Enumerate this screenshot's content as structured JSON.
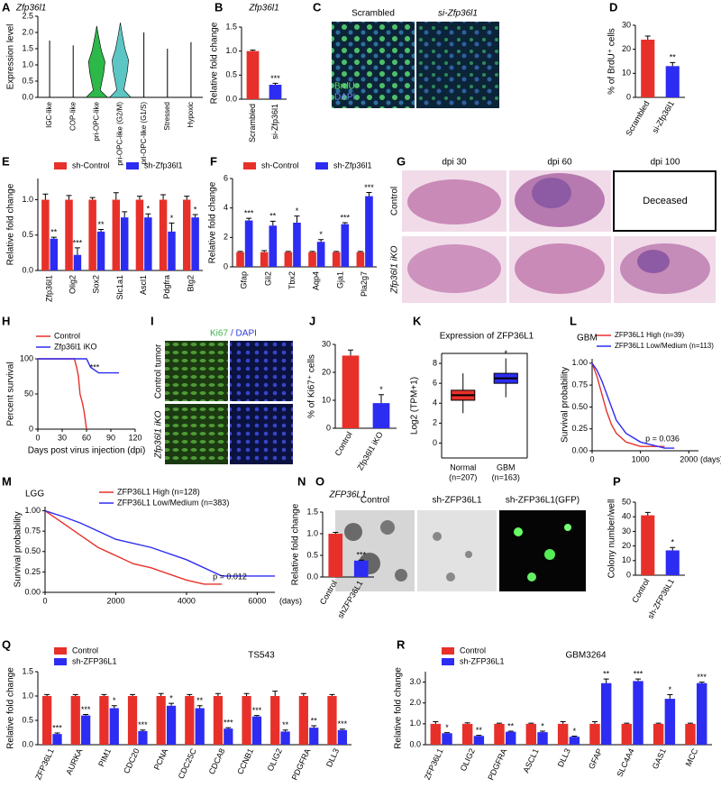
{
  "chart_data": [
    {
      "type": "violin",
      "panel": "A",
      "title": "Zfp36l1",
      "ylabel": "Expression level",
      "categories": [
        "IGC-like",
        "COP-like",
        "pri-OPC-like",
        "pri-OPC-like (G2/M)",
        "pri-OPC-like (G1/S)",
        "Stressed",
        "Hypoxic"
      ],
      "values": [
        1.75,
        1.6,
        2.2,
        2.3,
        2.0,
        1.5,
        1.7
      ],
      "colors": [
        "#000000",
        "#000000",
        "#2db84a",
        "#5cc6c4",
        "#000000",
        "#000000",
        "#000000"
      ],
      "ylim": [
        0,
        2.5
      ],
      "yticks": [
        {
          "value": 0,
          "label": "0.0"
        },
        0.5,
        {
          "value": 1,
          "label": "1.0"
        },
        1.5,
        {
          "value": 2,
          "label": "2.0"
        },
        2.5
      ]
    },
    {
      "type": "bar",
      "panel": "B",
      "title": "Zfp36l1",
      "ylabel": "Relative fold change",
      "categories": [
        "Scrambled",
        "si-Zfp36l1"
      ],
      "values": [
        1.0,
        0.3
      ],
      "errors": [
        0.02,
        0.03
      ],
      "colors": [
        "#e8302a",
        "#2d2cf2"
      ],
      "significance": [
        null,
        "***"
      ],
      "ylim": [
        0,
        1.5
      ],
      "yticks": [
        {
          "value": 0,
          "label": "0.0"
        },
        0.5,
        {
          "value": 1,
          "label": "1.0"
        },
        1.5
      ]
    },
    {
      "type": "bar",
      "panel": "D",
      "ylabel": "% of BrdU⁺ cells",
      "categories": [
        "Scrambled",
        "si-Zfp36l1"
      ],
      "values": [
        24,
        13
      ],
      "errors": [
        1.5,
        1.5
      ],
      "colors": [
        "#e8302a",
        "#2d2cf2"
      ],
      "significance": [
        null,
        "**"
      ],
      "ylim": [
        0,
        30
      ],
      "yticks": [
        0,
        10,
        20,
        30
      ]
    },
    {
      "type": "bar",
      "panel": "E",
      "ylabel": "Relative fold change",
      "categories": [
        "Zfp36l1",
        "Olig2",
        "Sox2",
        "Slc1a1",
        "Ascl1",
        "Pdgfra",
        "Btg2"
      ],
      "series": [
        {
          "name": "sh-Control",
          "color": "#e8302a",
          "values": [
            1,
            1,
            1,
            1,
            1,
            1,
            1
          ],
          "errors": [
            0.08,
            0.06,
            0.03,
            0.1,
            0.05,
            0.07,
            0.05
          ]
        },
        {
          "name": "sh-Zfp36l1",
          "color": "#2d2cf2",
          "values": [
            0.45,
            0.22,
            0.55,
            0.75,
            0.75,
            0.55,
            0.75
          ],
          "errors": [
            0.02,
            0.1,
            0.03,
            0.08,
            0.05,
            0.12,
            0.04
          ]
        }
      ],
      "significance": [
        "**",
        "***",
        "**",
        null,
        "*",
        "*",
        "*"
      ],
      "ylim": [
        0,
        1.3
      ],
      "yticks": [
        {
          "value": 0,
          "label": "0.0"
        },
        0.5,
        {
          "value": 1,
          "label": "1.0"
        }
      ]
    },
    {
      "type": "bar",
      "panel": "F",
      "ylabel": "Relative fold change",
      "categories": [
        "Gfap",
        "Gli2",
        "Tbx2",
        "Aqp4",
        "Gja1",
        "Pla2g7"
      ],
      "series": [
        {
          "name": "sh-Control",
          "color": "#e8302a",
          "values": [
            1,
            1,
            1,
            1,
            1,
            1
          ],
          "errors": [
            0.05,
            0.1,
            0.05,
            0.05,
            0.05,
            0.05
          ]
        },
        {
          "name": "sh-Zfp36l1",
          "color": "#2d2cf2",
          "values": [
            3.15,
            2.8,
            3.0,
            1.7,
            2.9,
            4.8
          ],
          "errors": [
            0.15,
            0.3,
            0.45,
            0.15,
            0.1,
            0.25
          ]
        }
      ],
      "significance": [
        "***",
        "**",
        "*",
        "*",
        "***",
        "***"
      ],
      "ylim": [
        0,
        6
      ],
      "yticks": [
        0,
        2,
        4,
        6
      ]
    },
    {
      "type": "line",
      "panel": "H",
      "xlabel": "Days post virus injection (dpi)",
      "ylabel": "Percent survival",
      "annotation": "***",
      "series": [
        {
          "name": "Control",
          "color": "#e8302a",
          "x": [
            0,
            45,
            48,
            50,
            52,
            55,
            57,
            60
          ],
          "values": [
            100,
            100,
            87,
            75,
            50,
            37,
            25,
            0
          ]
        },
        {
          "name": "Zfp36l1 iKO",
          "color": "#2d2cf2",
          "x": [
            0,
            60,
            65,
            75,
            100
          ],
          "values": [
            100,
            100,
            88,
            80,
            80
          ]
        }
      ],
      "xlim": [
        0,
        120
      ],
      "xticks": [
        0,
        30,
        60,
        90,
        120
      ],
      "ylim": [
        0,
        100
      ],
      "yticks": [
        0,
        50,
        100
      ]
    },
    {
      "type": "bar",
      "panel": "J",
      "ylabel": "% of Ki67⁺ cells",
      "categories": [
        "Control",
        "Zfp36l1 iKO"
      ],
      "values": [
        26,
        9
      ],
      "errors": [
        2,
        3
      ],
      "colors": [
        "#e8302a",
        "#2d2cf2"
      ],
      "significance": [
        null,
        "*"
      ],
      "ylim": [
        0,
        30
      ],
      "yticks": [
        0,
        10,
        20,
        30
      ]
    },
    {
      "type": "box",
      "panel": "K",
      "title": "Expression of ZFP36L1",
      "ylabel": "Log2 (TPM+1)",
      "categories": [
        "Normal",
        "GBM"
      ],
      "n_labels": [
        "(n=207)",
        "(n=163)"
      ],
      "boxes": [
        {
          "min": 3.0,
          "q1": 4.3,
          "median": 4.8,
          "q3": 5.3,
          "max": 7.0
        },
        {
          "min": 4.6,
          "q1": 6.0,
          "median": 6.5,
          "q3": 7.0,
          "max": 8.5
        }
      ],
      "colors": [
        "#e8302a",
        "#2d2cf2"
      ],
      "significance": [
        null,
        "*"
      ],
      "ylim": [
        -1.5,
        9
      ],
      "yticks": [
        0,
        2,
        4,
        6,
        8
      ]
    },
    {
      "type": "line",
      "panel": "L",
      "title": "GBM",
      "xlabel": "(days)",
      "ylabel": "Survival probability",
      "annotation": "p = 0.036",
      "series": [
        {
          "name": "ZFP36L1 High (n=39)",
          "color": "#e8302a",
          "x": [
            0,
            100,
            200,
            300,
            400,
            500,
            700,
            1000,
            1500
          ],
          "values": [
            1,
            0.85,
            0.65,
            0.45,
            0.3,
            0.2,
            0.1,
            0.05,
            0.05
          ]
        },
        {
          "name": "ZFP36L1 Low/Medium (n=113)",
          "color": "#2d2cf2",
          "x": [
            0,
            100,
            200,
            300,
            400,
            500,
            700,
            1000,
            1500,
            1700
          ],
          "values": [
            1,
            0.92,
            0.8,
            0.65,
            0.5,
            0.35,
            0.2,
            0.1,
            0.03,
            0.03
          ]
        }
      ],
      "xlim": [
        0,
        2200
      ],
      "xticks": [
        0,
        1000,
        2000
      ],
      "ylim": [
        0,
        1.05
      ],
      "yticks": [
        {
          "value": 0,
          "label": "0.00"
        },
        0.25,
        {
          "value": 0.5,
          "label": "0.50"
        },
        0.75,
        {
          "value": 1,
          "label": "1.00"
        }
      ]
    },
    {
      "type": "line",
      "panel": "M",
      "title": "LGG",
      "xlabel": "(days)",
      "ylabel": "Survival probability",
      "annotation": "p = 0.012",
      "series": [
        {
          "name": "ZFP36L1 High (n=128)",
          "color": "#e8302a",
          "x": [
            0,
            500,
            1000,
            1500,
            2000,
            2500,
            3000,
            4000,
            4500,
            5000
          ],
          "values": [
            1,
            0.85,
            0.7,
            0.55,
            0.45,
            0.35,
            0.3,
            0.15,
            0.1,
            0.1
          ]
        },
        {
          "name": "ZFP36L1 Low/Medium (n=383)",
          "color": "#2d2cf2",
          "x": [
            0,
            500,
            1000,
            1500,
            2000,
            3000,
            4000,
            5000,
            6500
          ],
          "values": [
            1,
            0.93,
            0.85,
            0.75,
            0.65,
            0.55,
            0.4,
            0.2,
            0.2
          ]
        }
      ],
      "xlim": [
        0,
        6500
      ],
      "xticks": [
        0,
        2000,
        4000,
        6000
      ],
      "ylim": [
        0,
        1.05
      ],
      "yticks": [
        {
          "value": 0,
          "label": "0.00"
        },
        0.25,
        {
          "value": 0.5,
          "label": "0.50"
        },
        0.75,
        {
          "value": 1,
          "label": "1.00"
        }
      ]
    },
    {
      "type": "bar",
      "panel": "N",
      "title": "ZFP36L1",
      "ylabel": "Relative fold change",
      "categories": [
        "Control",
        "shZFP36L1"
      ],
      "values": [
        1.0,
        0.38
      ],
      "errors": [
        0.03,
        0.01
      ],
      "colors": [
        "#e8302a",
        "#2d2cf2"
      ],
      "significance": [
        null,
        "***"
      ],
      "ylim": [
        0,
        1.5
      ],
      "yticks": [
        {
          "value": 0,
          "label": "0.0"
        },
        0.5,
        {
          "value": 1,
          "label": "1.0"
        },
        1.5
      ]
    },
    {
      "type": "bar",
      "panel": "P",
      "ylabel": "Colony number/well",
      "categories": [
        "Control",
        "sh-ZFP36L1"
      ],
      "values": [
        41,
        17
      ],
      "errors": [
        2,
        2
      ],
      "colors": [
        "#e8302a",
        "#2d2cf2"
      ],
      "significance": [
        null,
        "*"
      ],
      "ylim": [
        0,
        50
      ],
      "yticks": [
        0,
        10,
        20,
        30,
        40,
        50
      ]
    },
    {
      "type": "bar",
      "panel": "Q",
      "title": "TS543",
      "ylabel": "Relative fold change",
      "categories": [
        "ZFP36L1",
        "AURKA",
        "PIM1",
        "CDC20",
        "PCNA",
        "CDC25C",
        "CDCA8",
        "CCNB1",
        "OLIG2",
        "PDGFRA",
        "DLL3"
      ],
      "series": [
        {
          "name": "Control",
          "color": "#e8302a",
          "values": [
            1,
            1,
            1,
            1,
            1,
            1,
            1,
            1,
            1,
            1,
            1
          ],
          "errors": [
            0.03,
            0.03,
            0.03,
            0.03,
            0.05,
            0.03,
            0.05,
            0.05,
            0.1,
            0.05,
            0.03
          ]
        },
        {
          "name": "sh-ZFP36L1",
          "color": "#2d2cf2",
          "values": [
            0.22,
            0.6,
            0.75,
            0.28,
            0.8,
            0.75,
            0.33,
            0.58,
            0.27,
            0.35,
            0.3
          ],
          "errors": [
            0.02,
            0.02,
            0.05,
            0.02,
            0.05,
            0.05,
            0.02,
            0.02,
            0.03,
            0.04,
            0.02
          ]
        }
      ],
      "significance": [
        "***",
        "***",
        "*",
        "***",
        "*",
        "**",
        "***",
        "***",
        "**",
        "**",
        "***"
      ],
      "ylim": [
        0,
        1.5
      ],
      "yticks": [
        {
          "value": 0,
          "label": "0.0"
        },
        0.5,
        {
          "value": 1,
          "label": "1.0"
        },
        1.5
      ]
    },
    {
      "type": "bar",
      "panel": "R",
      "title": "GBM3264",
      "ylabel": "Relative fold change",
      "categories": [
        "ZFP36L1",
        "OLIG2",
        "PDGFRA",
        "ASCL1",
        "DLL3",
        "GFAP",
        "SLC4A4",
        "GAS1",
        "MCC"
      ],
      "series": [
        {
          "name": "Control",
          "color": "#e8302a",
          "values": [
            1,
            1,
            1,
            1,
            1,
            1,
            1,
            1,
            1
          ],
          "errors": [
            0.1,
            0.05,
            0.03,
            0.03,
            0.1,
            0.1,
            0.03,
            0.03,
            0.03
          ]
        },
        {
          "name": "sh-ZFP36L1",
          "color": "#2d2cf2",
          "values": [
            0.55,
            0.42,
            0.62,
            0.6,
            0.38,
            2.95,
            3.05,
            2.2,
            2.95
          ],
          "errors": [
            0.03,
            0.03,
            0.03,
            0.05,
            0.03,
            0.2,
            0.1,
            0.2,
            0.05
          ]
        }
      ],
      "significance": [
        "*",
        "**",
        "**",
        "*",
        "*",
        "**",
        "***",
        "*",
        "***"
      ],
      "ylim": [
        0,
        3.5
      ],
      "yticks": [
        {
          "value": 0,
          "label": "0.0"
        },
        {
          "value": 1,
          "label": "1.0"
        },
        {
          "value": 2,
          "label": "2.0"
        },
        {
          "value": 3,
          "label": "3.0"
        }
      ]
    }
  ],
  "images": [
    {
      "panel": "C",
      "columns": [
        "Scrambled",
        "si-Zfp36l1"
      ],
      "stains": [
        "BrdU",
        "DAPI"
      ]
    },
    {
      "panel": "G",
      "columns": [
        "dpi 30",
        "dpi 60",
        "dpi 100"
      ],
      "rows": [
        "Control",
        "Zfp36l1 iKO"
      ],
      "note": "Deceased"
    },
    {
      "panel": "I",
      "stains": [
        "Ki67",
        "/ DAPI"
      ],
      "rows": [
        "Control tumor",
        "Zfp36l1 iKO"
      ]
    },
    {
      "panel": "O",
      "columns": [
        "Control",
        "sh-ZFP36L1",
        "sh-ZFP36L1(GFP)"
      ]
    }
  ]
}
